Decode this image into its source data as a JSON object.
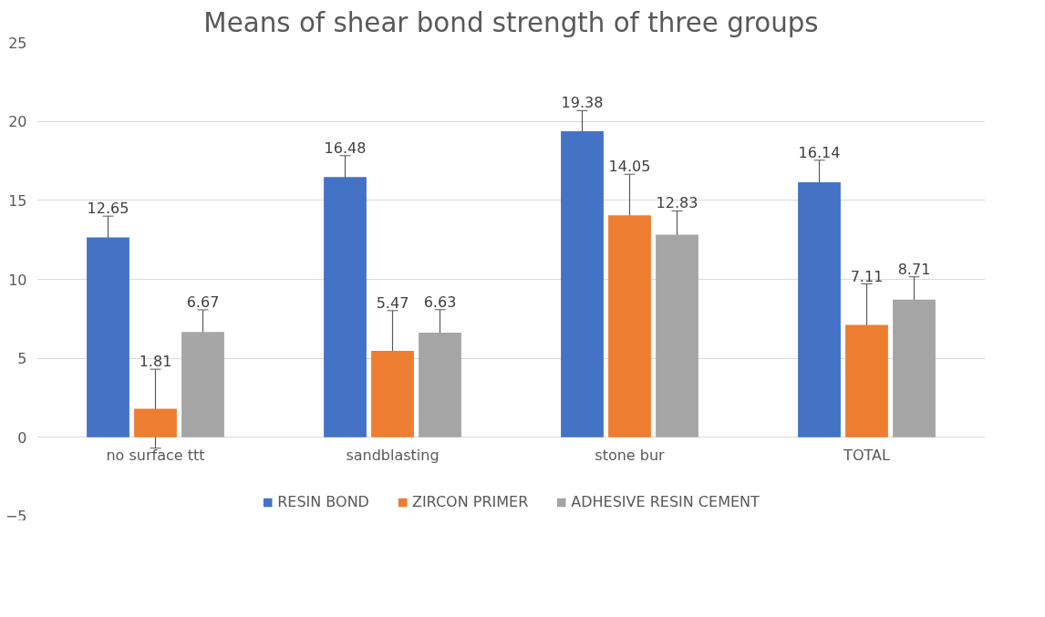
{
  "chart_data": {
    "type": "bar",
    "title": "Means of shear bond strength of three groups",
    "categories": [
      "no surface ttt",
      "sandblasting",
      "stone bur",
      "TOTAL"
    ],
    "series": [
      {
        "name": "RESIN BOND",
        "color": "#4472c4",
        "values": [
          12.65,
          16.48,
          19.38,
          16.14
        ],
        "errors": [
          1.35,
          1.35,
          1.3,
          1.4
        ]
      },
      {
        "name": "ZIRCON PRIMER",
        "color": "#ed7d31",
        "values": [
          1.81,
          5.47,
          14.05,
          7.11
        ],
        "errors": [
          2.5,
          2.55,
          2.6,
          2.6
        ]
      },
      {
        "name": "ADHESIVE RESIN CEMENT",
        "color": "#a5a5a5",
        "values": [
          6.67,
          6.63,
          12.83,
          8.71
        ],
        "errors": [
          1.4,
          1.45,
          1.5,
          1.45
        ]
      }
    ],
    "ylim": [
      -5,
      25
    ],
    "yticks": [
      -5,
      0,
      5,
      10,
      15,
      20,
      25
    ],
    "grid": "y",
    "legend": "bottom",
    "data_labels": true
  }
}
